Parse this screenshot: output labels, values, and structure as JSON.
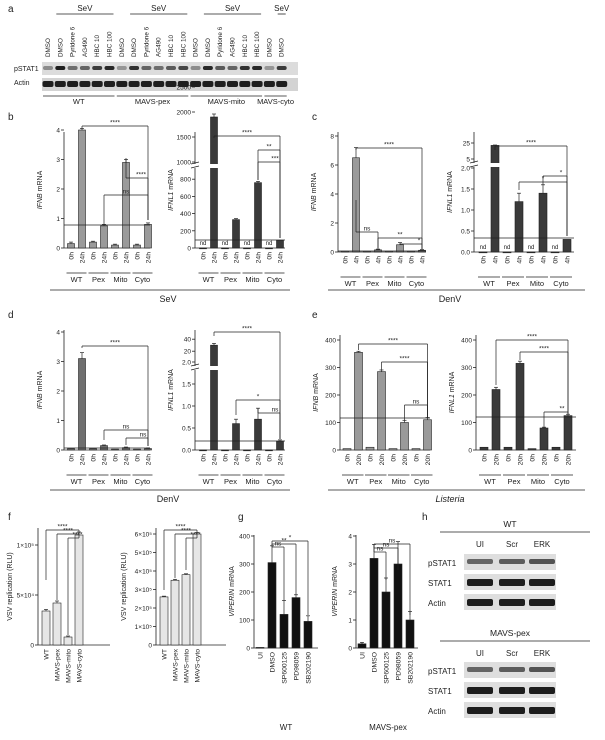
{
  "panel_letters": {
    "a": "a",
    "b": "b",
    "c": "c",
    "d": "d",
    "e": "e",
    "f": "f",
    "g": "g",
    "h": "h"
  },
  "panel_a": {
    "sev_labels": [
      "SeV",
      "SeV",
      "SeV",
      "SeV"
    ],
    "lanes": [
      "DMSO",
      "DMSO",
      "Pyridone 6",
      "AG490",
      "HBC 10",
      "HBC 100",
      "DMSO",
      "DMSO",
      "Pyridone 6",
      "AG490",
      "HBC 10",
      "HBC 100",
      "DMSO",
      "DMSO",
      "Pyridone 6",
      "AG490",
      "HBC 10",
      "HBC 100",
      "DMSO",
      "DMSO"
    ],
    "row_labels": [
      "pSTAT1",
      "Actin"
    ],
    "groups": [
      "WT",
      "MAVS-pex",
      "MAVS-mito",
      "MAVS-cyto"
    ]
  },
  "common": {
    "nd": "nd",
    "stars4": "****",
    "stars3": "***",
    "stars2": "**",
    "stars1": "*",
    "ns": "ns",
    "h0": "0h",
    "h4": "4h",
    "h20": "20h",
    "h24": "24h",
    "wt": "WT",
    "pex": "Pex",
    "mito": "Mito",
    "cyto": "Cyto",
    "sev": "SeV",
    "denv": "DenV",
    "listeria": "Listeria"
  },
  "chart_data": [
    {
      "id": "b1",
      "type": "bar",
      "ylabel": "IFNB mRNA",
      "yticks": [
        "0",
        "1",
        "2",
        "3",
        "4"
      ],
      "categories": [
        "0h",
        "24h",
        "0h",
        "24h",
        "0h",
        "24h",
        "0h",
        "24h"
      ],
      "values": [
        0.15,
        4.0,
        0.2,
        0.75,
        0.1,
        2.9,
        0.1,
        0.8
      ],
      "groups": [
        "WT",
        "Pex",
        "Mito",
        "Cyto"
      ]
    },
    {
      "id": "b2",
      "type": "bar",
      "ylabel": "IFNL1 mRNA",
      "yticks": [
        "0",
        "200",
        "400",
        "600",
        "800",
        "1000",
        "1500",
        "2000",
        "2500"
      ],
      "categories": [
        "0h",
        "24h",
        "0h",
        "24h",
        "0h",
        "24h",
        "0h",
        "24h"
      ],
      "values": [
        0,
        1900,
        0,
        330,
        0,
        760,
        0,
        90
      ],
      "nd": [
        true,
        false,
        true,
        false,
        true,
        false,
        true,
        false
      ],
      "groups": [
        "WT",
        "Pex",
        "Mito",
        "Cyto"
      ]
    },
    {
      "id": "c1",
      "type": "bar",
      "ylabel": "IFNB mRNA",
      "yticks": [
        "0",
        "2",
        "4",
        "6",
        "8"
      ],
      "categories": [
        "0h",
        "4h",
        "0h",
        "4h",
        "0h",
        "4h",
        "0h",
        "4h"
      ],
      "values": [
        0.05,
        6.5,
        0.05,
        0.15,
        0.05,
        0.5,
        0.05,
        0.12
      ],
      "groups": [
        "WT",
        "Pex",
        "Mito",
        "Cyto"
      ]
    },
    {
      "id": "c2",
      "type": "bar",
      "ylabel": "IFNL1 mRNA",
      "yticks": [
        "0.0",
        "0.5",
        "1.0",
        "1.5",
        "2.0",
        "5",
        "25"
      ],
      "categories": [
        "0h",
        "4h",
        "0h",
        "4h",
        "0h",
        "4h",
        "0h",
        "4h"
      ],
      "values": [
        0,
        22,
        0,
        1.2,
        0,
        1.4,
        0,
        0.3
      ],
      "nd": [
        true,
        false,
        true,
        false,
        true,
        false,
        true,
        false
      ],
      "groups": [
        "WT",
        "Pex",
        "Mito",
        "Cyto"
      ]
    },
    {
      "id": "d1",
      "type": "bar",
      "ylabel": "IFNB mRNA",
      "yticks": [
        "0",
        "1",
        "2",
        "3",
        "4"
      ],
      "categories": [
        "0h",
        "24h",
        "0h",
        "24h",
        "0h",
        "24h",
        "0h",
        "24h"
      ],
      "values": [
        0.05,
        3.1,
        0.05,
        0.15,
        0.03,
        0.08,
        0.03,
        0.05
      ],
      "groups": [
        "WT",
        "Pex",
        "Mito",
        "Cyto"
      ]
    },
    {
      "id": "d2",
      "type": "bar",
      "ylabel": "IFNL1 mRNA",
      "yticks": [
        "0.0",
        "0.5",
        "1.0",
        "1.5",
        "2.0",
        "20",
        "40"
      ],
      "categories": [
        "0h",
        "24h",
        "0h",
        "24h",
        "0h",
        "24h",
        "0h",
        "24h"
      ],
      "values": [
        0,
        30,
        0,
        0.6,
        0,
        0.7,
        0,
        0.2
      ],
      "groups": [
        "WT",
        "Pex",
        "Mito",
        "Cyto"
      ]
    },
    {
      "id": "e1",
      "type": "bar",
      "ylabel": "IFNB mRNA",
      "yticks": [
        "0",
        "100",
        "200",
        "300",
        "400"
      ],
      "categories": [
        "0h",
        "20h",
        "0h",
        "20h",
        "0h",
        "20h",
        "0h",
        "20h"
      ],
      "values": [
        5,
        355,
        10,
        285,
        5,
        100,
        5,
        110
      ],
      "groups": [
        "WT",
        "Pex",
        "Mito",
        "Cyto"
      ]
    },
    {
      "id": "e2",
      "type": "bar",
      "ylabel": "IFNL1 mRNA",
      "yticks": [
        "0",
        "100",
        "200",
        "300",
        "400"
      ],
      "categories": [
        "0h",
        "20h",
        "0h",
        "20h",
        "0h",
        "20h",
        "0h",
        "20h"
      ],
      "values": [
        10,
        220,
        10,
        315,
        5,
        80,
        10,
        125
      ],
      "groups": [
        "WT",
        "Pex",
        "Mito",
        "Cyto"
      ]
    },
    {
      "id": "f1",
      "type": "bar",
      "ylabel": "VSV replication (RLU)",
      "yticks": [
        "0",
        "5×10⁴",
        "1×10⁵"
      ],
      "categories": [
        "WT",
        "MAVS-pex",
        "MAVS-mito",
        "MAVS-cyto"
      ],
      "values": [
        34000,
        42000,
        8000,
        110000
      ]
    },
    {
      "id": "f2",
      "type": "bar",
      "ylabel": "VSV replication (RLU)",
      "yticks": [
        "0",
        "1×10⁵",
        "2×10⁵",
        "3×10⁵",
        "4×10⁵",
        "5×10⁵",
        "6×10⁵"
      ],
      "categories": [
        "WT",
        "MAVS-pex",
        "MAVS-mito",
        "MAVS-cyto"
      ],
      "values": [
        260000,
        350000,
        380000,
        600000
      ]
    },
    {
      "id": "g1",
      "type": "bar",
      "ylabel": "VIPERIN mRNA",
      "yticks": [
        "0",
        "100",
        "200",
        "300",
        "400"
      ],
      "categories": [
        "UI",
        "DMSO",
        "SP600125",
        "PD98059",
        "SB202190"
      ],
      "values": [
        2,
        305,
        120,
        180,
        95
      ],
      "group": "WT"
    },
    {
      "id": "g2",
      "type": "bar",
      "ylabel": "VIPERIN mRNA",
      "yticks": [
        "0",
        "1",
        "2",
        "3",
        "4"
      ],
      "categories": [
        "UI",
        "DMSO",
        "SP600125",
        "PD98059",
        "SB202190"
      ],
      "values": [
        0.15,
        3.2,
        2.0,
        3.0,
        1.0
      ],
      "group": "MAVS-pex"
    }
  ],
  "panel_h": {
    "title_wt": "WT",
    "title_pex": "MAVS-pex",
    "lanes": [
      "UI",
      "Scr",
      "ERK"
    ],
    "rows": [
      "pSTAT1",
      "STAT1",
      "Actin"
    ]
  }
}
